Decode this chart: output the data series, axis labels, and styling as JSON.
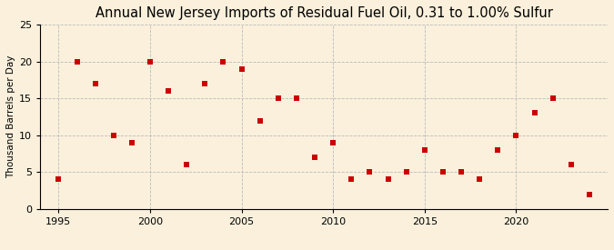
{
  "title": "Annual New Jersey Imports of Residual Fuel Oil, 0.31 to 1.00% Sulfur",
  "ylabel": "Thousand Barrels per Day",
  "years": [
    1995,
    1996,
    1997,
    1998,
    1999,
    2000,
    2001,
    2002,
    2003,
    2004,
    2005,
    2006,
    2007,
    2008,
    2009,
    2010,
    2011,
    2012,
    2013,
    2014,
    2015,
    2016,
    2017,
    2018,
    2019,
    2020,
    2021,
    2022,
    2023,
    2024
  ],
  "values": [
    4,
    20,
    17,
    10,
    9,
    20,
    16,
    6,
    17,
    20,
    19,
    12,
    15,
    15,
    7,
    9,
    4,
    5,
    4,
    5,
    8,
    5,
    5,
    4,
    8,
    10,
    13,
    15,
    6,
    2
  ],
  "marker_color": "#cc0000",
  "marker_size": 4,
  "background_color": "#faf0dc",
  "xlim": [
    1994.0,
    2025.0
  ],
  "ylim": [
    0,
    25
  ],
  "yticks": [
    0,
    5,
    10,
    15,
    20,
    25
  ],
  "xticks": [
    1995,
    2000,
    2005,
    2010,
    2015,
    2020
  ],
  "grid_color": "#bbbbbb",
  "title_fontsize": 10.5,
  "label_fontsize": 7.5,
  "tick_fontsize": 8,
  "source_fontsize": 7
}
